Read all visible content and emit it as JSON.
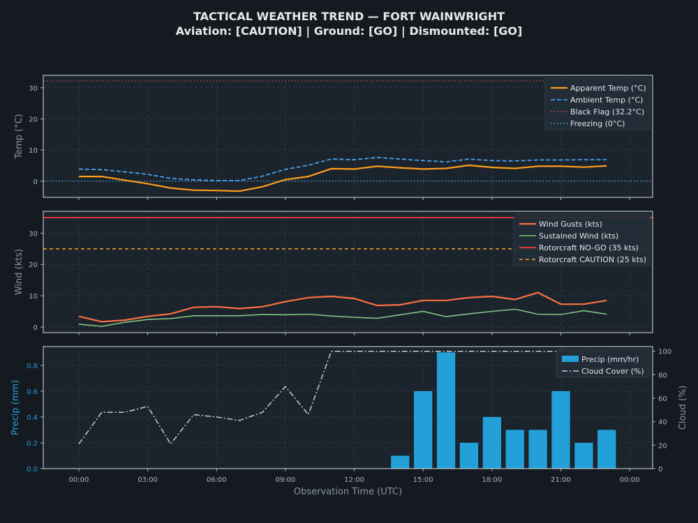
{
  "title": {
    "line1": "TACTICAL WEATHER TREND — FORT WAINWRIGHT",
    "line2": "Aviation: [CAUTION]  |  Ground: [GO]  |  Dismounted: [GO]"
  },
  "colors": {
    "background": "#141a20",
    "panel": "#1b232c",
    "apparent": "#ff9e1b",
    "ambient": "#4aa3f0",
    "black_flag": "#e04848",
    "freezing": "#4fb3e8",
    "gusts": "#ff7043",
    "sustained": "#81c784",
    "nogo": "#d93a3a",
    "caution": "#f5a623",
    "precip": "#23a0d8",
    "cloud": "#c8ccd0"
  },
  "chart_data": [
    {
      "type": "line",
      "ylabel": "Temp (°C)",
      "ylim": [
        -5.2,
        34
      ],
      "yticks": [
        "0",
        "10",
        "20",
        "30"
      ],
      "grid": true,
      "legend_placement": "top-right",
      "x_hours": [
        0,
        1,
        2,
        3,
        4,
        5,
        6,
        7,
        8,
        9,
        10,
        11,
        12,
        13,
        14,
        15,
        16,
        17,
        18,
        19,
        20,
        21,
        22,
        23
      ],
      "series": [
        {
          "name": "Apparent Temp (°C)",
          "values": [
            1.5,
            1.5,
            0.3,
            -0.8,
            -2.2,
            -2.9,
            -3.0,
            -3.2,
            -1.8,
            0.5,
            1.5,
            4.0,
            3.9,
            4.8,
            4.3,
            3.9,
            4.1,
            5.1,
            4.4,
            4.1,
            4.8,
            4.8,
            4.5,
            4.9
          ]
        },
        {
          "name": "Ambient Temp (°C)",
          "values": [
            3.9,
            3.7,
            3.0,
            2.2,
            0.9,
            0.4,
            0.2,
            0.2,
            1.6,
            3.8,
            5.1,
            7.1,
            6.9,
            7.6,
            7.1,
            6.6,
            6.2,
            7.1,
            6.6,
            6.5,
            6.8,
            6.8,
            6.9,
            6.9
          ]
        }
      ],
      "thresholds": [
        {
          "name": "Black Flag (32.2°C)",
          "value": 32.2
        },
        {
          "name": "Freezing (0°C)",
          "value": 0
        }
      ]
    },
    {
      "type": "line",
      "ylabel": "Wind (kts)",
      "ylim": [
        -1.8,
        37
      ],
      "yticks": [
        "0",
        "10",
        "20",
        "30"
      ],
      "grid": true,
      "legend_placement": "top-right",
      "x_hours": [
        0,
        1,
        2,
        3,
        4,
        5,
        6,
        7,
        8,
        9,
        10,
        11,
        12,
        13,
        14,
        15,
        16,
        17,
        18,
        19,
        20,
        21,
        22,
        23
      ],
      "series": [
        {
          "name": "Wind Gusts (kts)",
          "values": [
            3.4,
            1.7,
            2.2,
            3.4,
            4.2,
            6.3,
            6.5,
            5.9,
            6.5,
            8.1,
            9.4,
            9.8,
            9.1,
            6.9,
            7.1,
            8.5,
            8.5,
            9.4,
            9.8,
            8.8,
            11.0,
            7.3,
            7.3,
            8.5
          ]
        },
        {
          "name": "Sustained Wind (kts)",
          "values": [
            0.9,
            0.2,
            1.5,
            2.4,
            2.7,
            3.6,
            3.6,
            3.6,
            4.0,
            3.9,
            4.1,
            3.5,
            3.1,
            2.8,
            3.9,
            5.0,
            3.3,
            4.2,
            5.0,
            5.7,
            4.1,
            4.0,
            5.2,
            4.1
          ]
        }
      ],
      "thresholds": [
        {
          "name": "Rotorcraft NO-GO (35 kts)",
          "value": 35
        },
        {
          "name": "Rotorcraft CAUTION (25 kts)",
          "value": 25
        }
      ]
    },
    {
      "type": "bar",
      "ylabel": "Precip (mm)",
      "y2label": "Cloud (%)",
      "ylim": [
        0,
        0.945
      ],
      "y2lim": [
        0,
        104
      ],
      "yticks": [
        "0.0",
        "0.2",
        "0.4",
        "0.6",
        "0.8"
      ],
      "y2ticks": [
        "0",
        "20",
        "40",
        "60",
        "80",
        "100"
      ],
      "xlabel": "Observation Time (UTC)",
      "xticks": [
        "00:00",
        "03:00",
        "06:00",
        "09:00",
        "12:00",
        "15:00",
        "18:00",
        "21:00",
        "00:00"
      ],
      "xlim_hours": [
        -1.55,
        25.0
      ],
      "grid": true,
      "legend_placement": "top-right",
      "x_hours": [
        0,
        1,
        2,
        3,
        4,
        5,
        6,
        7,
        8,
        9,
        10,
        11,
        12,
        13,
        14,
        15,
        16,
        17,
        18,
        19,
        20,
        21,
        22,
        23
      ],
      "series": [
        {
          "name": "Precip (mm/hr)",
          "kind": "bar",
          "values": [
            0,
            0,
            0,
            0,
            0,
            0,
            0,
            0,
            0,
            0,
            0,
            0,
            0,
            0,
            0.1,
            0.6,
            0.9,
            0.2,
            0.4,
            0.3,
            0.3,
            0.6,
            0.2,
            0.3
          ]
        },
        {
          "name": "Cloud Cover (%)",
          "kind": "line",
          "axis": "right",
          "values": [
            21,
            48,
            48,
            53,
            21,
            46,
            44,
            41,
            48,
            70,
            46,
            100,
            100,
            100,
            100,
            100,
            100,
            100,
            100,
            100,
            100,
            100,
            100,
            100
          ]
        }
      ]
    }
  ]
}
